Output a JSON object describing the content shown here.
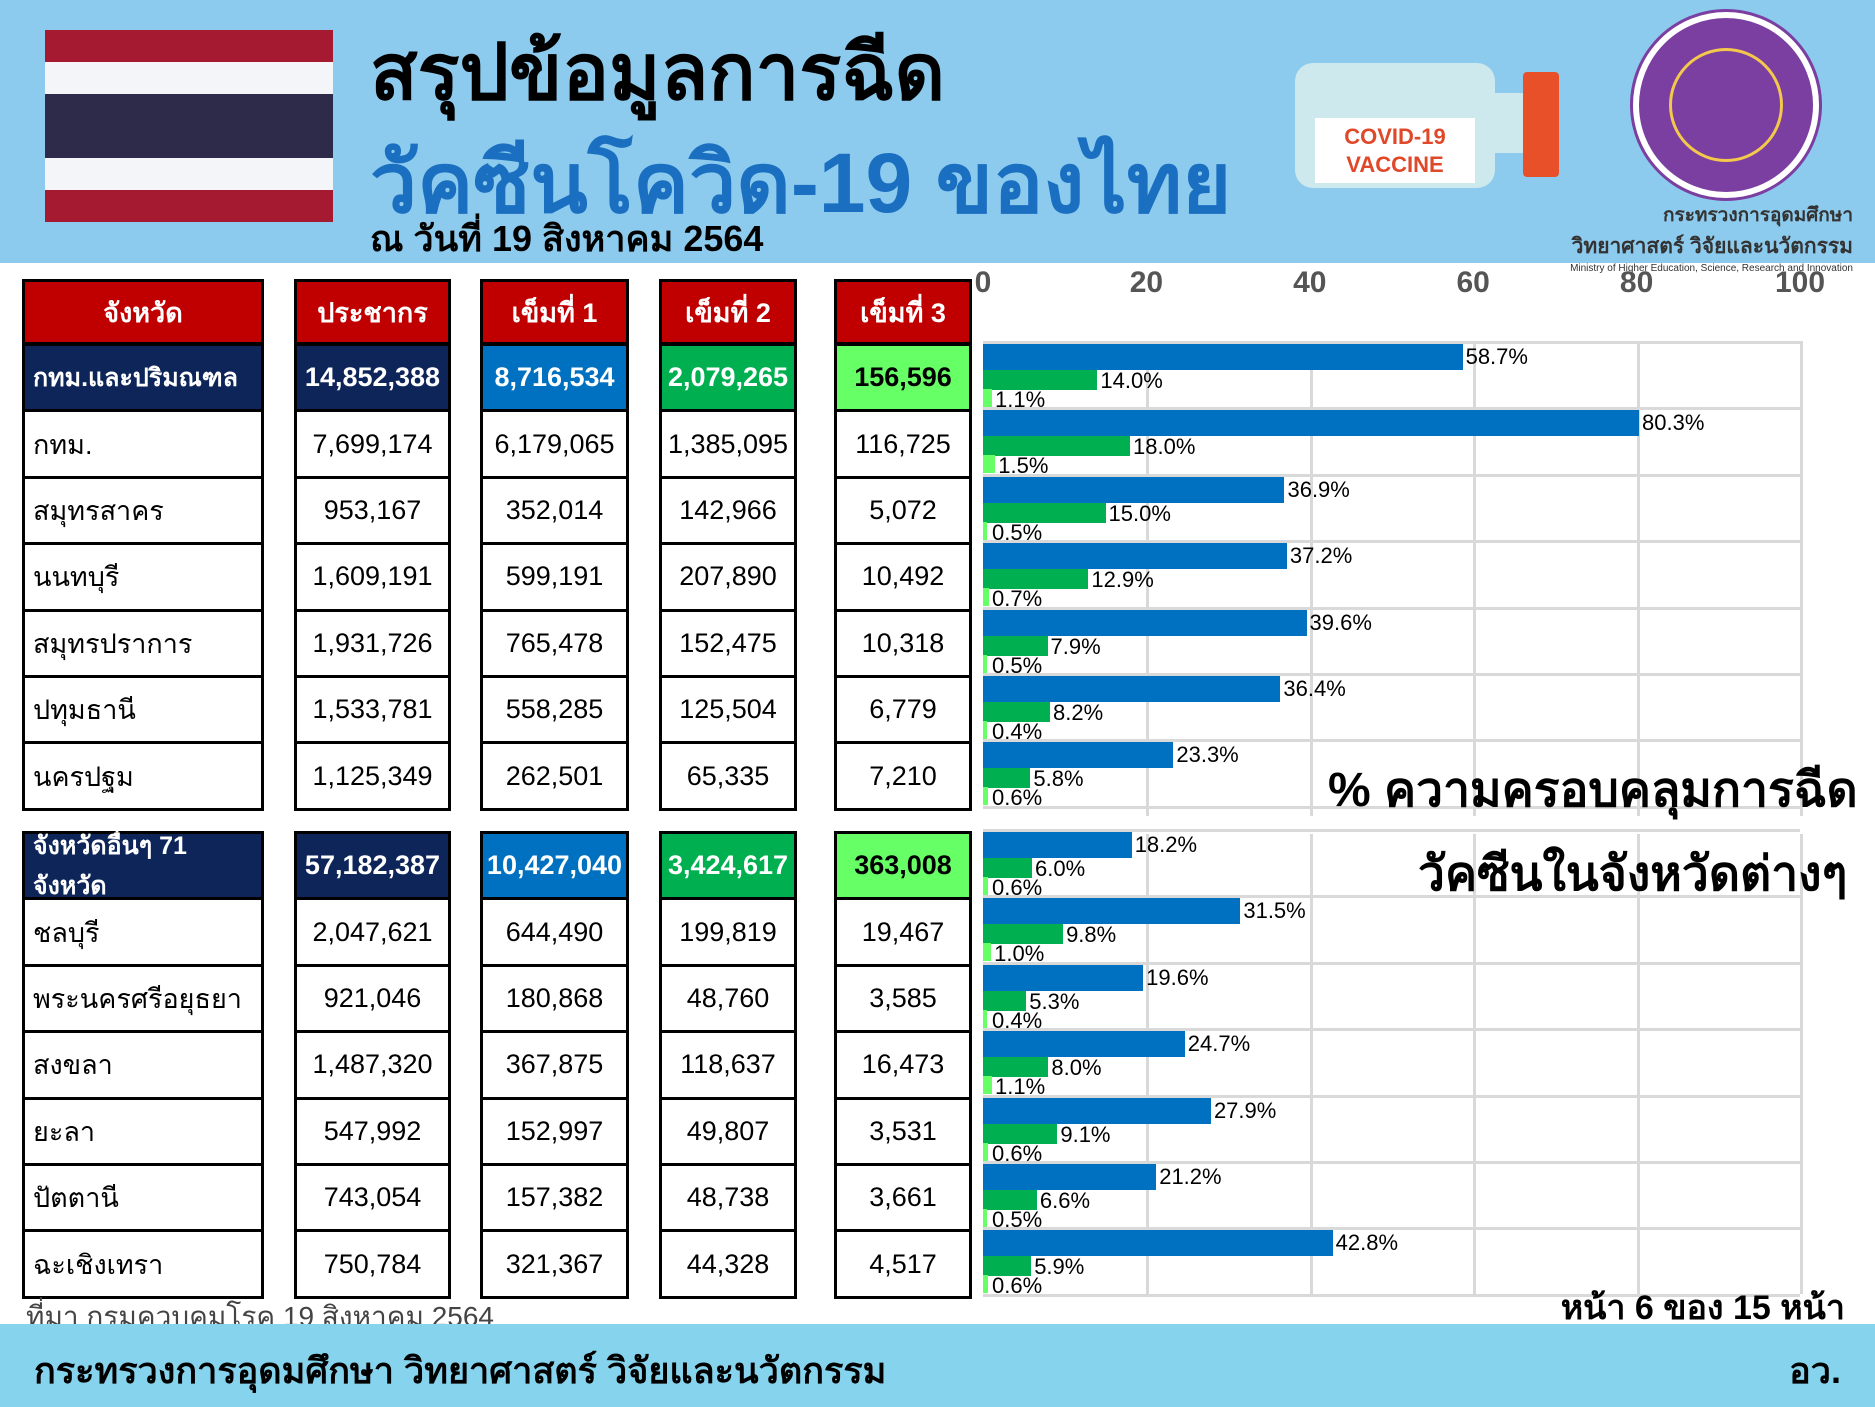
{
  "header": {
    "title_line1": "สรุปข้อมูลการฉีด",
    "title_line2": "วัคซีนโควิด-19 ของไทย",
    "date": "ณ วันที่ 19 สิงหาคม 2564",
    "vaccine_label": "COVID-19 VACCINE",
    "ministry_th_1": "กระทรวงการอุดมศึกษา",
    "ministry_th_2": "วิทยาศาสตร์ วิจัยและนวัตกรรม",
    "ministry_en": "Ministry of Higher Education, Science, Research and Innovation"
  },
  "flag_colors": [
    "#a51931",
    "#f4f5f8",
    "#2d2a4a",
    "#f4f5f8",
    "#a51931"
  ],
  "columns": [
    "จังหวัด",
    "ประชากร",
    "เข็มที่ 1",
    "เข็มที่ 2",
    "เข็มที่ 3"
  ],
  "colors": {
    "header_red": "#c00000",
    "summary_navy": "#0d2559",
    "dose1_blue": "#0070c0",
    "dose2_green": "#00b050",
    "dose3_lightgreen": "#66ff66"
  },
  "table1": [
    [
      "กทม.และปริมณฑล",
      "14,852,388",
      "8,716,534",
      "2,079,265",
      "156,596"
    ],
    [
      "กทม.",
      "7,699,174",
      "6,179,065",
      "1,385,095",
      "116,725"
    ],
    [
      "สมุทรสาคร",
      "953,167",
      "352,014",
      "142,966",
      "5,072"
    ],
    [
      "นนทบุรี",
      "1,609,191",
      "599,191",
      "207,890",
      "10,492"
    ],
    [
      "สมุทรปราการ",
      "1,931,726",
      "765,478",
      "152,475",
      "10,318"
    ],
    [
      "ปทุมธานี",
      "1,533,781",
      "558,285",
      "125,504",
      "6,779"
    ],
    [
      "นครปฐม",
      "1,125,349",
      "262,501",
      "65,335",
      "7,210"
    ]
  ],
  "table2": [
    [
      "จังหวัดอื่นๆ 71 จังหวัด",
      "57,182,387",
      "10,427,040",
      "3,424,617",
      "363,008"
    ],
    [
      "ชลบุรี",
      "2,047,621",
      "644,490",
      "199,819",
      "19,467"
    ],
    [
      "พระนครศรีอยุธยา",
      "921,046",
      "180,868",
      "48,760",
      "3,585"
    ],
    [
      "สงขลา",
      "1,487,320",
      "367,875",
      "118,637",
      "16,473"
    ],
    [
      "ยะลา",
      "547,992",
      "152,997",
      "49,807",
      "3,531"
    ],
    [
      "ปัตตานี",
      "743,054",
      "157,382",
      "48,738",
      "3,661"
    ],
    [
      "ฉะเชิงเทรา",
      "750,784",
      "321,367",
      "44,328",
      "4,517"
    ]
  ],
  "chart_data": {
    "type": "bar",
    "orientation": "horizontal",
    "xlim": [
      0,
      100
    ],
    "ticks": [
      "0",
      "20",
      "40",
      "60",
      "80",
      "100"
    ],
    "grid": true,
    "title1": "% ความครอบคลุมการฉีด",
    "title2": "วัคซีนในจังหวัดต่างๆ",
    "categories": [
      "กทม.และปริมณฑล",
      "กทม.",
      "สมุทรสาคร",
      "นนทบุรี",
      "สมุทรปราการ",
      "ปทุมธานี",
      "นครปฐม",
      "จังหวัดอื่นๆ 71 จังหวัด",
      "ชลบุรี",
      "พระนครศรีอยุธยา",
      "สงขลา",
      "ยะลา",
      "ปัตตานี",
      "ฉะเชิงเทรา"
    ],
    "series": [
      {
        "values": [
          58.7,
          80.3,
          36.9,
          37.2,
          39.6,
          36.4,
          23.3,
          18.2,
          31.5,
          19.6,
          24.7,
          27.9,
          21.2,
          42.8
        ]
      },
      {
        "values": [
          14.0,
          18.0,
          15.0,
          12.9,
          7.9,
          8.2,
          5.8,
          6.0,
          9.8,
          5.3,
          8.0,
          9.1,
          6.6,
          5.9
        ]
      },
      {
        "values": [
          1.1,
          1.5,
          0.5,
          0.7,
          0.5,
          0.4,
          0.6,
          0.6,
          1.0,
          0.4,
          1.1,
          0.6,
          0.5,
          0.6
        ]
      }
    ]
  },
  "source": "ที่มา กรมควบคุมโรค 19 สิงหาคม 2564",
  "page": "หน้า 6 ของ 15 หน้า",
  "footer": {
    "left": "กระทรวงการอุดมศึกษา วิทยาศาสตร์ วิจัยและนวัตกรรม",
    "right": "อว."
  }
}
